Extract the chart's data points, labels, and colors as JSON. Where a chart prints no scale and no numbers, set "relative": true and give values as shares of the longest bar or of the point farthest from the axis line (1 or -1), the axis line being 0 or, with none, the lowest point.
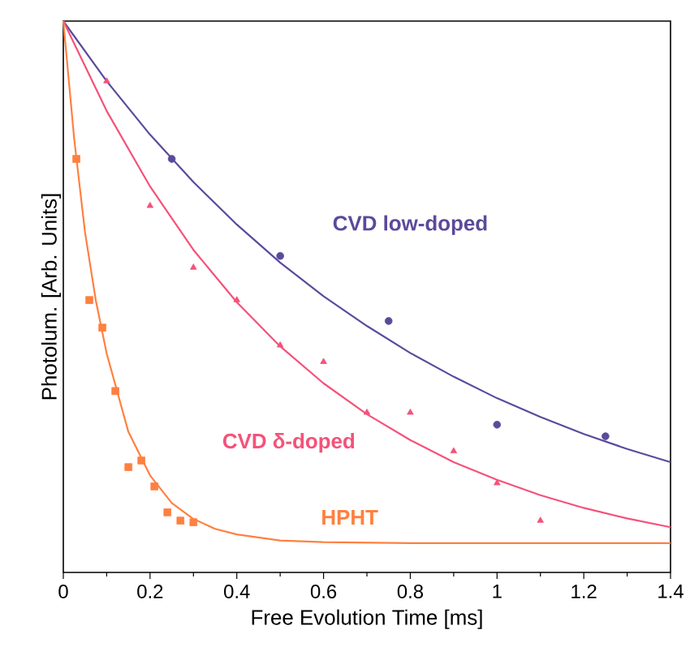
{
  "chart_data": {
    "type": "scatter",
    "relative": true,
    "xlabel": "Free Evolution Time [ms]",
    "ylabel": "Photolum. [Arb. Units]",
    "xlim": [
      0,
      1.4
    ],
    "xticks": [
      0,
      0.2,
      0.4,
      0.6,
      0.8,
      1,
      1.2,
      1.4
    ],
    "tick_labels": "x",
    "grid": false,
    "series": [
      {
        "name": "CVD low-doped",
        "marker": "circle",
        "color": "#5b4a9b",
        "x": [
          0.25,
          0.5,
          0.75,
          1.0,
          1.25
        ],
        "values": [
          0.75,
          0.574,
          0.456,
          0.268,
          0.247
        ]
      },
      {
        "name": "CVD δ-doped",
        "marker": "triangle",
        "color": "#f4527a",
        "x": [
          0.1,
          0.2,
          0.3,
          0.4,
          0.5,
          0.6,
          0.7,
          0.8,
          0.9,
          1.0,
          1.1
        ],
        "values": [
          0.891,
          0.665,
          0.553,
          0.494,
          0.412,
          0.382,
          0.29,
          0.29,
          0.22,
          0.162,
          0.094
        ]
      },
      {
        "name": "HPHT",
        "marker": "square",
        "color": "#ff8040",
        "x": [
          0.03,
          0.06,
          0.09,
          0.12,
          0.15,
          0.18,
          0.21,
          0.24,
          0.27,
          0.3
        ],
        "values": [
          0.75,
          0.494,
          0.444,
          0.329,
          0.191,
          0.203,
          0.156,
          0.109,
          0.094,
          0.091
        ]
      },
      {
        "type": "line",
        "marker": "none",
        "color": "#5b4a9b",
        "x": [
          0,
          0.1,
          0.2,
          0.3,
          0.4,
          0.5,
          0.6,
          0.7,
          0.8,
          0.9,
          1.0,
          1.1,
          1.2,
          1.3,
          1.4
        ],
        "values": [
          1,
          0.891,
          0.794,
          0.708,
          0.631,
          0.562,
          0.501,
          0.447,
          0.398,
          0.355,
          0.316,
          0.282,
          0.251,
          0.224,
          0.2
        ]
      },
      {
        "type": "line",
        "marker": "none",
        "color": "#f4527a",
        "x": [
          0,
          0.1,
          0.2,
          0.3,
          0.4,
          0.5,
          0.6,
          0.7,
          0.8,
          0.9,
          1.0,
          1.1,
          1.2,
          1.3,
          1.4
        ],
        "values": [
          1,
          0.837,
          0.7,
          0.585,
          0.49,
          0.41,
          0.343,
          0.287,
          0.24,
          0.2,
          0.168,
          0.14,
          0.117,
          0.098,
          0.082
        ]
      },
      {
        "type": "line",
        "marker": "none",
        "color": "#ff8040",
        "x": [
          0,
          0.025,
          0.05,
          0.075,
          0.1,
          0.15,
          0.2,
          0.25,
          0.3,
          0.35,
          0.4,
          0.5,
          0.6,
          0.8,
          1.0,
          1.4
        ],
        "values": [
          1,
          0.787,
          0.617,
          0.493,
          0.397,
          0.255,
          0.176,
          0.126,
          0.097,
          0.079,
          0.069,
          0.058,
          0.055,
          0.053,
          0.053,
          0.053
        ]
      }
    ]
  }
}
